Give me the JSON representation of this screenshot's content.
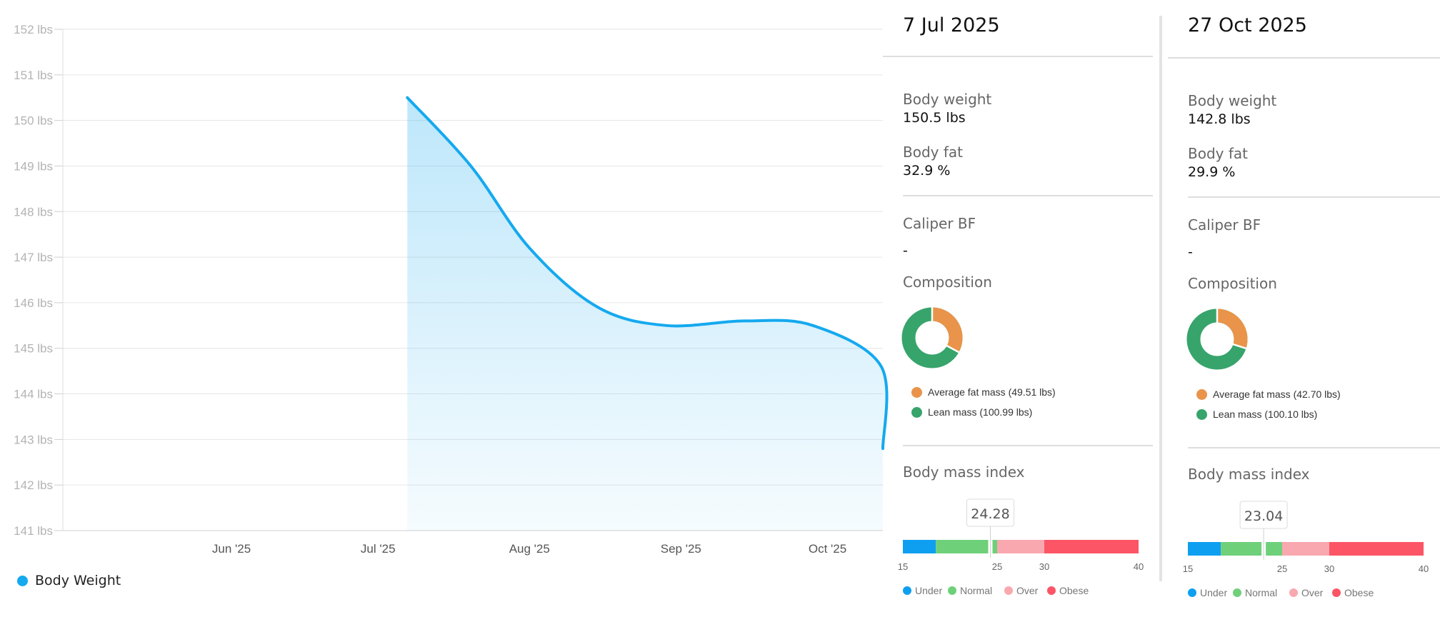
{
  "chart_data": {
    "type": "area",
    "y_ticks": [
      "152 lbs",
      "151 lbs",
      "150 lbs",
      "149 lbs",
      "148 lbs",
      "147 lbs",
      "146 lbs",
      "145 lbs",
      "144 lbs",
      "143 lbs",
      "142 lbs",
      "141 lbs"
    ],
    "x_ticks": [
      "Jun '25",
      "Jul '25",
      "Aug '25",
      "Sep '25",
      "Oct '25"
    ],
    "ylim": [
      141,
      152
    ],
    "series": [
      {
        "name": "Body Weight",
        "color": "#15a9ef",
        "points": [
          {
            "x": "2025-07-07",
            "y": 150.5
          },
          {
            "x": "2025-07-20",
            "y": 149.0
          },
          {
            "x": "2025-08-01",
            "y": 147.2
          },
          {
            "x": "2025-08-15",
            "y": 145.9
          },
          {
            "x": "2025-08-29",
            "y": 145.5
          },
          {
            "x": "2025-09-14",
            "y": 145.6
          },
          {
            "x": "2025-09-28",
            "y": 145.5
          },
          {
            "x": "2025-10-12",
            "y": 144.6
          },
          {
            "x": "2025-10-27",
            "y": 142.8
          }
        ]
      }
    ],
    "grid": true
  },
  "legend": {
    "label": "Body Weight",
    "color": "#15a9ef"
  },
  "panels": [
    {
      "date": "7 Jul 2025",
      "body_weight_label": "Body weight",
      "body_weight": "150.5 lbs",
      "body_fat_label": "Body fat",
      "body_fat": "32.9 %",
      "caliper_label": "Caliper BF",
      "caliper_value": "-",
      "composition_label": "Composition",
      "fat_fraction": 0.329,
      "fat_legend": "Average fat mass  (49.51 lbs)",
      "lean_legend": "Lean mass (100.99 lbs)",
      "bmi_label": "Body mass index",
      "bmi_value": "24.28",
      "bmi_number": 24.28
    },
    {
      "date": "27 Oct 2025",
      "body_weight_label": "Body weight",
      "body_weight": "142.8 lbs",
      "body_fat_label": "Body fat",
      "body_fat": "29.9 %",
      "caliper_label": "Caliper BF",
      "caliper_value": "-",
      "composition_label": "Composition",
      "fat_fraction": 0.299,
      "fat_legend": "Average fat mass  (42.70 lbs)",
      "lean_legend": "Lean mass (100.10 lbs)",
      "bmi_label": "Body mass index",
      "bmi_value": "23.04",
      "bmi_number": 23.04
    }
  ],
  "bmi_scale": {
    "ticks": [
      "15",
      "25",
      "30",
      "40"
    ],
    "legend": [
      "Under",
      "Normal",
      "Over",
      "Obese"
    ],
    "colors": [
      "#0e9ff0",
      "#6fd07a",
      "#f9a8b0",
      "#fc5566"
    ]
  },
  "colors": {
    "fat": "#e9944a",
    "lean": "#37a46b"
  }
}
